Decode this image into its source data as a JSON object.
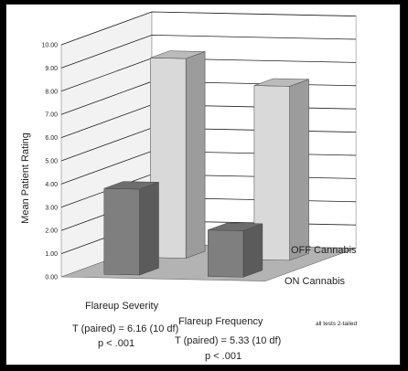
{
  "chart_data": {
    "type": "bar",
    "style": "3d",
    "ylabel": "Mean Patient Rating",
    "ylim": [
      0,
      10
    ],
    "yticks": [
      "0.00",
      "1.00",
      "2.00",
      "3.00",
      "4.00",
      "5.00",
      "6.00",
      "7.00",
      "8.00",
      "9.00",
      "10.00"
    ],
    "categories": [
      "Flareup Severity",
      "Flareup Frequency"
    ],
    "series": [
      {
        "name": "OFF Cannabis",
        "values": [
          8.6,
          7.5
        ],
        "color": "#d9d9d9"
      },
      {
        "name": "ON Cannabis",
        "values": [
          3.7,
          2.0
        ],
        "color": "#7f7f7f"
      }
    ],
    "grid": true
  },
  "annotations": {
    "severity_t": "T (paired) = 6.16 (10 df)",
    "severity_p": "p < .001",
    "frequency_t": "T (paired) = 5.33 (10 df)",
    "frequency_p": "p < .001",
    "tails_note": "all tests 2-tailed"
  }
}
